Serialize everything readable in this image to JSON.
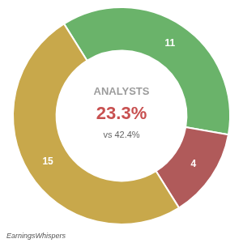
{
  "chart_data": {
    "type": "doughnut",
    "values": [
      11,
      4,
      15
    ],
    "colors": [
      "#6ab36a",
      "#b05a5a",
      "#c8a84b"
    ],
    "data_labels": true,
    "legend": false,
    "annotations": [
      "ANALYSTS",
      "23.3%",
      "vs 42.4%",
      "EarningsWhispers"
    ]
  }
}
